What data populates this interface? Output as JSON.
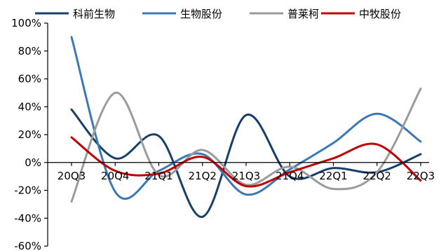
{
  "chart_data": {
    "type": "line",
    "title": "",
    "xlabel": "",
    "ylabel": "",
    "categories": [
      "20Q3",
      "20Q4",
      "21Q1",
      "21Q2",
      "21Q3",
      "21Q4",
      "22Q1",
      "22Q2",
      "22Q3"
    ],
    "y_tick_labels": [
      "100%",
      "80%",
      "60%",
      "40%",
      "20%",
      "0%",
      "-20%",
      "-40%",
      "-60%"
    ],
    "ylim": [
      -60,
      100
    ],
    "y_unit": "%",
    "grid": false,
    "legend_position": "top",
    "smooth": true,
    "series": [
      {
        "name": "科前生物",
        "color": "#173f6b",
        "values": [
          38,
          3,
          19,
          -39,
          34,
          -10,
          -4,
          -7,
          6
        ]
      },
      {
        "name": "生物股份",
        "color": "#3a78b6",
        "values": [
          90,
          -21,
          -6,
          6,
          -23,
          -5,
          14,
          35,
          15
        ]
      },
      {
        "name": "普莱柯",
        "color": "#9b9b9b",
        "values": [
          -28,
          50,
          -9,
          9,
          -16,
          -3,
          -19,
          -7,
          53
        ]
      },
      {
        "name": "中牧股份",
        "color": "#c00000",
        "values": [
          18,
          -6,
          -8,
          4,
          -17,
          -7,
          3,
          13,
          -13
        ]
      }
    ]
  }
}
